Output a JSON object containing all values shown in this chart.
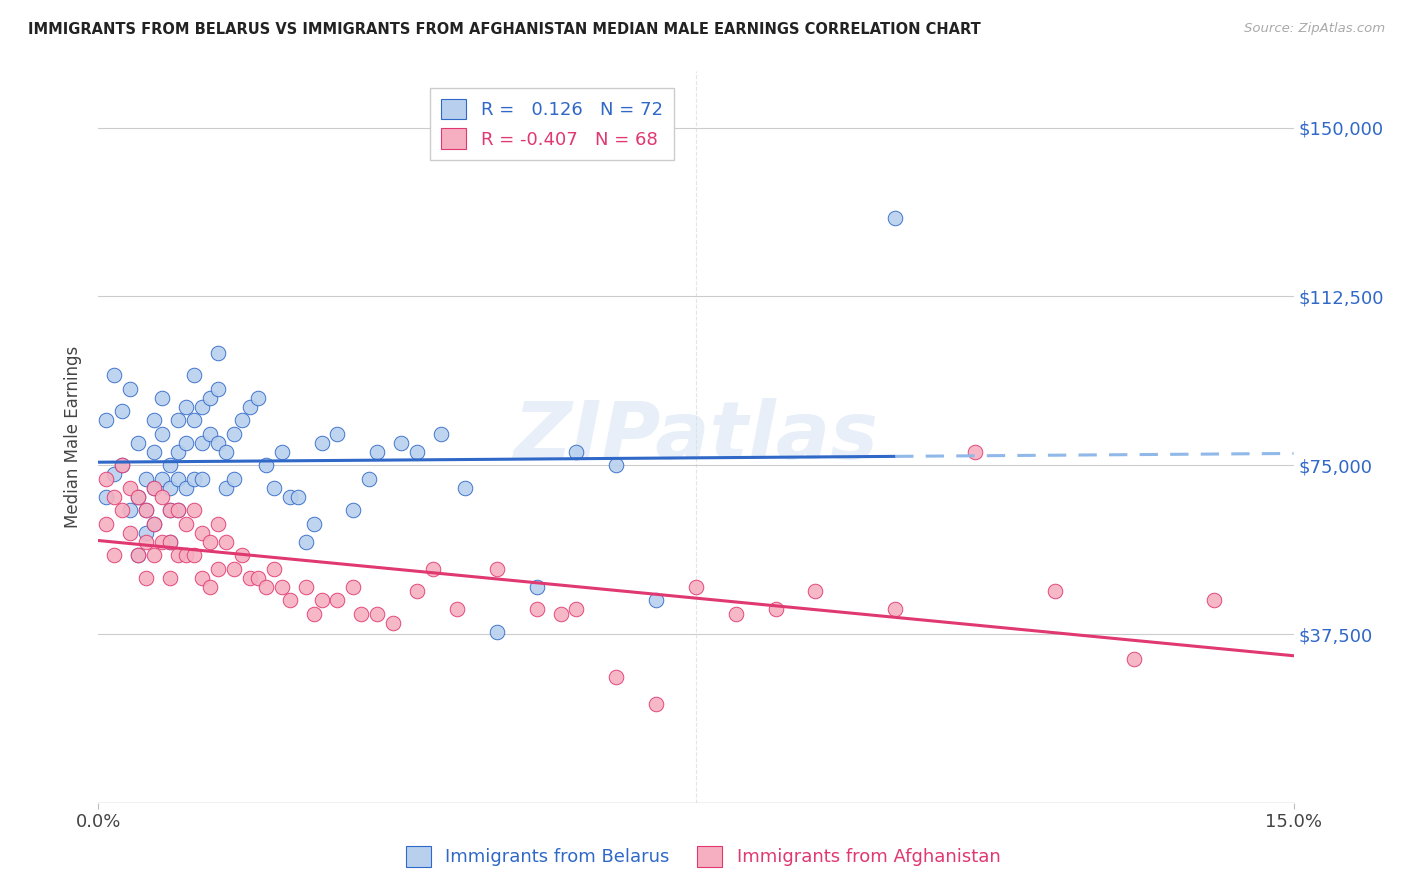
{
  "title": "IMMIGRANTS FROM BELARUS VS IMMIGRANTS FROM AFGHANISTAN MEDIAN MALE EARNINGS CORRELATION CHART",
  "source": "Source: ZipAtlas.com",
  "ylabel": "Median Male Earnings",
  "ytick_labels": [
    "$37,500",
    "$75,000",
    "$112,500",
    "$150,000"
  ],
  "ytick_values": [
    37500,
    75000,
    112500,
    150000
  ],
  "ymin": 0,
  "ymax": 162500,
  "xmin": 0.0,
  "xmax": 0.15,
  "legend_R_belarus": "0.126",
  "legend_N_belarus": "72",
  "legend_R_afghan": "-0.407",
  "legend_N_afghan": "68",
  "color_belarus": "#b8d0ee",
  "color_afghan": "#f5afc0",
  "color_line_belarus": "#3068c8",
  "color_line_afghan": "#e03870",
  "color_dashed": "#90b8e8",
  "watermark": "ZIPatlas",
  "background_color": "#ffffff",
  "belarus_scatter_x": [
    0.001,
    0.001,
    0.002,
    0.002,
    0.003,
    0.003,
    0.004,
    0.004,
    0.005,
    0.005,
    0.005,
    0.006,
    0.006,
    0.006,
    0.007,
    0.007,
    0.007,
    0.007,
    0.008,
    0.008,
    0.008,
    0.009,
    0.009,
    0.009,
    0.009,
    0.01,
    0.01,
    0.01,
    0.01,
    0.011,
    0.011,
    0.011,
    0.012,
    0.012,
    0.012,
    0.013,
    0.013,
    0.013,
    0.014,
    0.014,
    0.015,
    0.015,
    0.015,
    0.016,
    0.016,
    0.017,
    0.017,
    0.018,
    0.019,
    0.02,
    0.021,
    0.022,
    0.023,
    0.024,
    0.025,
    0.026,
    0.027,
    0.028,
    0.03,
    0.032,
    0.034,
    0.035,
    0.038,
    0.04,
    0.043,
    0.046,
    0.05,
    0.055,
    0.06,
    0.065,
    0.07,
    0.1
  ],
  "belarus_scatter_y": [
    85000,
    68000,
    95000,
    73000,
    87000,
    75000,
    92000,
    65000,
    80000,
    68000,
    55000,
    72000,
    65000,
    60000,
    85000,
    78000,
    70000,
    62000,
    90000,
    82000,
    72000,
    75000,
    70000,
    65000,
    58000,
    85000,
    78000,
    72000,
    65000,
    88000,
    80000,
    70000,
    95000,
    85000,
    72000,
    88000,
    80000,
    72000,
    90000,
    82000,
    100000,
    92000,
    80000,
    78000,
    70000,
    82000,
    72000,
    85000,
    88000,
    90000,
    75000,
    70000,
    78000,
    68000,
    68000,
    58000,
    62000,
    80000,
    82000,
    65000,
    72000,
    78000,
    80000,
    78000,
    82000,
    70000,
    38000,
    48000,
    78000,
    75000,
    45000,
    130000
  ],
  "afghan_scatter_x": [
    0.001,
    0.001,
    0.002,
    0.002,
    0.003,
    0.003,
    0.004,
    0.004,
    0.005,
    0.005,
    0.006,
    0.006,
    0.006,
    0.007,
    0.007,
    0.007,
    0.008,
    0.008,
    0.009,
    0.009,
    0.009,
    0.01,
    0.01,
    0.011,
    0.011,
    0.012,
    0.012,
    0.013,
    0.013,
    0.014,
    0.014,
    0.015,
    0.015,
    0.016,
    0.017,
    0.018,
    0.019,
    0.02,
    0.021,
    0.022,
    0.023,
    0.024,
    0.026,
    0.027,
    0.028,
    0.03,
    0.032,
    0.033,
    0.035,
    0.037,
    0.04,
    0.042,
    0.045,
    0.05,
    0.055,
    0.058,
    0.06,
    0.065,
    0.07,
    0.075,
    0.08,
    0.085,
    0.09,
    0.1,
    0.11,
    0.12,
    0.13,
    0.14
  ],
  "afghan_scatter_y": [
    72000,
    62000,
    68000,
    55000,
    75000,
    65000,
    70000,
    60000,
    68000,
    55000,
    65000,
    58000,
    50000,
    70000,
    62000,
    55000,
    68000,
    58000,
    65000,
    58000,
    50000,
    65000,
    55000,
    62000,
    55000,
    65000,
    55000,
    60000,
    50000,
    58000,
    48000,
    62000,
    52000,
    58000,
    52000,
    55000,
    50000,
    50000,
    48000,
    52000,
    48000,
    45000,
    48000,
    42000,
    45000,
    45000,
    48000,
    42000,
    42000,
    40000,
    47000,
    52000,
    43000,
    52000,
    43000,
    42000,
    43000,
    28000,
    22000,
    48000,
    42000,
    43000,
    47000,
    43000,
    78000,
    47000,
    32000,
    45000
  ]
}
